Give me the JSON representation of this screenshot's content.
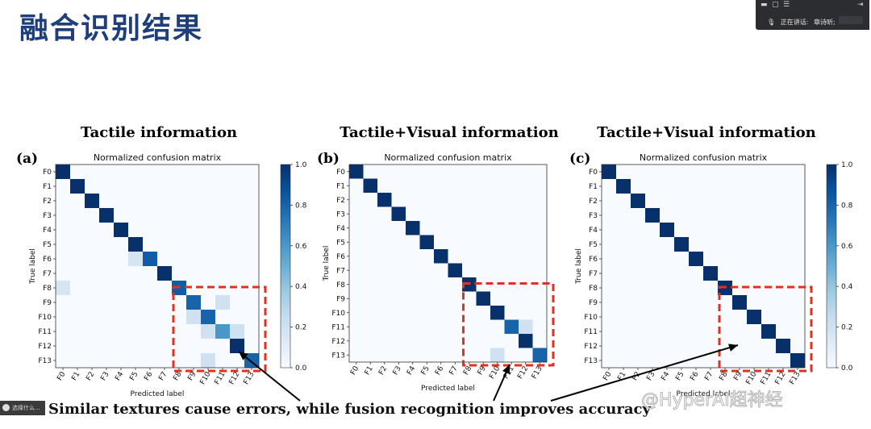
{
  "slide": {
    "title": "融合识别结果"
  },
  "meeting": {
    "speaking_label": "正在讲话:",
    "speaker": "章诗昕;"
  },
  "taskbar": {
    "label": "选择什么..."
  },
  "caption": "Similar textures cause errors, while fusion recognition improves accuracy",
  "watermark": "@HyperAI超神经",
  "colors": {
    "cmap_low": "#f7fbff",
    "cmap_high": "#08306b",
    "highlight_box": "#e0301e"
  },
  "chart_data": [
    {
      "type": "heatmap",
      "panel": "(a)",
      "heading": "Tactile information",
      "title": "Normalized confusion matrix",
      "xlabel": "Predicted label",
      "ylabel": "True label",
      "x_ticks": [
        "F0",
        "F1",
        "F2",
        "F3",
        "F4",
        "F5",
        "F6",
        "F7",
        "F8",
        "F9",
        "F10",
        "F11",
        "F12",
        "F13"
      ],
      "y_ticks": [
        "F0",
        "F1",
        "F2",
        "F3",
        "F4",
        "F5",
        "F6",
        "F7",
        "F8",
        "F9",
        "F10",
        "F11",
        "F12",
        "F13"
      ],
      "colorbar": {
        "range": [
          0,
          1
        ],
        "ticks": [
          "0.0",
          "0.2",
          "0.4",
          "0.6",
          "0.8",
          "1.0"
        ]
      },
      "highlight": {
        "rows": [
          9,
          13
        ],
        "cols": [
          9,
          13
        ]
      },
      "values": [
        [
          1,
          0,
          0,
          0,
          0,
          0,
          0,
          0,
          0,
          0,
          0,
          0,
          0,
          0
        ],
        [
          0,
          1,
          0,
          0,
          0,
          0,
          0,
          0,
          0,
          0,
          0,
          0,
          0,
          0
        ],
        [
          0,
          0,
          1,
          0,
          0,
          0,
          0,
          0,
          0,
          0,
          0,
          0,
          0,
          0
        ],
        [
          0,
          0,
          0,
          1,
          0,
          0,
          0,
          0,
          0,
          0,
          0,
          0,
          0,
          0
        ],
        [
          0,
          0,
          0,
          0,
          1,
          0,
          0,
          0,
          0,
          0,
          0,
          0,
          0,
          0
        ],
        [
          0,
          0,
          0,
          0,
          0,
          1,
          0,
          0,
          0,
          0,
          0,
          0,
          0,
          0
        ],
        [
          0,
          0,
          0,
          0,
          0,
          0.17,
          0.83,
          0,
          0,
          0,
          0,
          0,
          0,
          0
        ],
        [
          0,
          0,
          0,
          0,
          0,
          0,
          0,
          1,
          0,
          0,
          0,
          0,
          0,
          0
        ],
        [
          0.17,
          0,
          0,
          0,
          0,
          0,
          0,
          0,
          0.83,
          0,
          0,
          0,
          0,
          0
        ],
        [
          0,
          0,
          0,
          0,
          0,
          0,
          0,
          0,
          0,
          0.8,
          0,
          0.2,
          0,
          0
        ],
        [
          0,
          0,
          0,
          0,
          0,
          0,
          0,
          0,
          0,
          0.2,
          0.8,
          0,
          0,
          0
        ],
        [
          0,
          0,
          0,
          0,
          0,
          0,
          0,
          0,
          0,
          0,
          0.2,
          0.6,
          0.2,
          0
        ],
        [
          0,
          0,
          0,
          0,
          0,
          0,
          0,
          0,
          0,
          0,
          0,
          0,
          1,
          0
        ],
        [
          0,
          0,
          0,
          0,
          0,
          0,
          0,
          0,
          0,
          0,
          0.2,
          0,
          0,
          0.8
        ]
      ]
    },
    {
      "type": "heatmap",
      "panel": "(b)",
      "heading": "Tactile+Visual information",
      "title": "Normalized confusion matrix",
      "xlabel": "Predicted label",
      "ylabel": "True label",
      "x_ticks": [
        "F0",
        "F1",
        "F2",
        "F3",
        "F4",
        "F5",
        "F6",
        "F7",
        "F8",
        "F9",
        "F10",
        "F11",
        "F12",
        "F13"
      ],
      "y_ticks": [
        "F0",
        "F1",
        "F2",
        "F3",
        "F4",
        "F5",
        "F6",
        "F7",
        "F8",
        "F9",
        "F10",
        "F11",
        "F12",
        "F13"
      ],
      "highlight": {
        "rows": [
          9,
          13
        ],
        "cols": [
          9,
          13
        ]
      },
      "values": [
        [
          1,
          0,
          0,
          0,
          0,
          0,
          0,
          0,
          0,
          0,
          0,
          0,
          0,
          0
        ],
        [
          0,
          1,
          0,
          0,
          0,
          0,
          0,
          0,
          0,
          0,
          0,
          0,
          0,
          0
        ],
        [
          0,
          0,
          1,
          0,
          0,
          0,
          0,
          0,
          0,
          0,
          0,
          0,
          0,
          0
        ],
        [
          0,
          0,
          0,
          1,
          0,
          0,
          0,
          0,
          0,
          0,
          0,
          0,
          0,
          0
        ],
        [
          0,
          0,
          0,
          0,
          1,
          0,
          0,
          0,
          0,
          0,
          0,
          0,
          0,
          0
        ],
        [
          0,
          0,
          0,
          0,
          0,
          1,
          0,
          0,
          0,
          0,
          0,
          0,
          0,
          0
        ],
        [
          0,
          0,
          0,
          0,
          0,
          0,
          1,
          0,
          0,
          0,
          0,
          0,
          0,
          0
        ],
        [
          0,
          0,
          0,
          0,
          0,
          0,
          0,
          1,
          0,
          0,
          0,
          0,
          0,
          0
        ],
        [
          0,
          0,
          0,
          0,
          0,
          0,
          0,
          0,
          1,
          0,
          0,
          0,
          0,
          0
        ],
        [
          0,
          0,
          0,
          0,
          0,
          0,
          0,
          0,
          0,
          1,
          0,
          0,
          0,
          0
        ],
        [
          0,
          0,
          0,
          0,
          0,
          0,
          0,
          0,
          0,
          0,
          1,
          0,
          0,
          0
        ],
        [
          0,
          0,
          0,
          0,
          0,
          0,
          0,
          0,
          0,
          0,
          0,
          0.8,
          0.2,
          0
        ],
        [
          0,
          0,
          0,
          0,
          0,
          0,
          0,
          0,
          0,
          0,
          0,
          0,
          1,
          0
        ],
        [
          0,
          0,
          0,
          0,
          0,
          0,
          0,
          0,
          0,
          0,
          0.2,
          0,
          0,
          0.8
        ]
      ]
    },
    {
      "type": "heatmap",
      "panel": "(c)",
      "heading": "Tactile+Visual information",
      "title": "Normalized confusion matrix",
      "xlabel": "Predicted label",
      "ylabel": "True label",
      "x_ticks": [
        "F0",
        "F1",
        "F2",
        "F3",
        "F4",
        "F5",
        "F6",
        "F7",
        "F8",
        "F9",
        "F10",
        "F11",
        "F12",
        "F13"
      ],
      "y_ticks": [
        "F0",
        "F1",
        "F2",
        "F3",
        "F4",
        "F5",
        "F6",
        "F7",
        "F8",
        "F9",
        "F10",
        "F11",
        "F12",
        "F13"
      ],
      "colorbar": {
        "range": [
          0,
          1
        ],
        "ticks": [
          "0.0",
          "0.2",
          "0.4",
          "0.6",
          "0.8",
          "1.0"
        ]
      },
      "highlight": {
        "rows": [
          9,
          13
        ],
        "cols": [
          9,
          13
        ]
      },
      "values": [
        [
          1,
          0,
          0,
          0,
          0,
          0,
          0,
          0,
          0,
          0,
          0,
          0,
          0,
          0
        ],
        [
          0,
          1,
          0,
          0,
          0,
          0,
          0,
          0,
          0,
          0,
          0,
          0,
          0,
          0
        ],
        [
          0,
          0,
          1,
          0,
          0,
          0,
          0,
          0,
          0,
          0,
          0,
          0,
          0,
          0
        ],
        [
          0,
          0,
          0,
          1,
          0,
          0,
          0,
          0,
          0,
          0,
          0,
          0,
          0,
          0
        ],
        [
          0,
          0,
          0,
          0,
          1,
          0,
          0,
          0,
          0,
          0,
          0,
          0,
          0,
          0
        ],
        [
          0,
          0,
          0,
          0,
          0,
          1,
          0,
          0,
          0,
          0,
          0,
          0,
          0,
          0
        ],
        [
          0,
          0,
          0,
          0,
          0,
          0,
          1,
          0,
          0,
          0,
          0,
          0,
          0,
          0
        ],
        [
          0,
          0,
          0,
          0,
          0,
          0,
          0,
          1,
          0,
          0,
          0,
          0,
          0,
          0
        ],
        [
          0,
          0,
          0,
          0,
          0,
          0,
          0,
          0,
          1,
          0,
          0,
          0,
          0,
          0
        ],
        [
          0,
          0,
          0,
          0,
          0,
          0,
          0,
          0,
          0,
          1,
          0,
          0,
          0,
          0
        ],
        [
          0,
          0,
          0,
          0,
          0,
          0,
          0,
          0,
          0,
          0,
          1,
          0,
          0,
          0
        ],
        [
          0,
          0,
          0,
          0,
          0,
          0,
          0,
          0,
          0,
          0,
          0,
          1,
          0,
          0
        ],
        [
          0,
          0,
          0,
          0,
          0,
          0,
          0,
          0,
          0,
          0,
          0,
          0,
          1,
          0
        ],
        [
          0,
          0,
          0,
          0,
          0,
          0,
          0,
          0,
          0,
          0,
          0,
          0,
          0,
          1
        ]
      ]
    }
  ]
}
